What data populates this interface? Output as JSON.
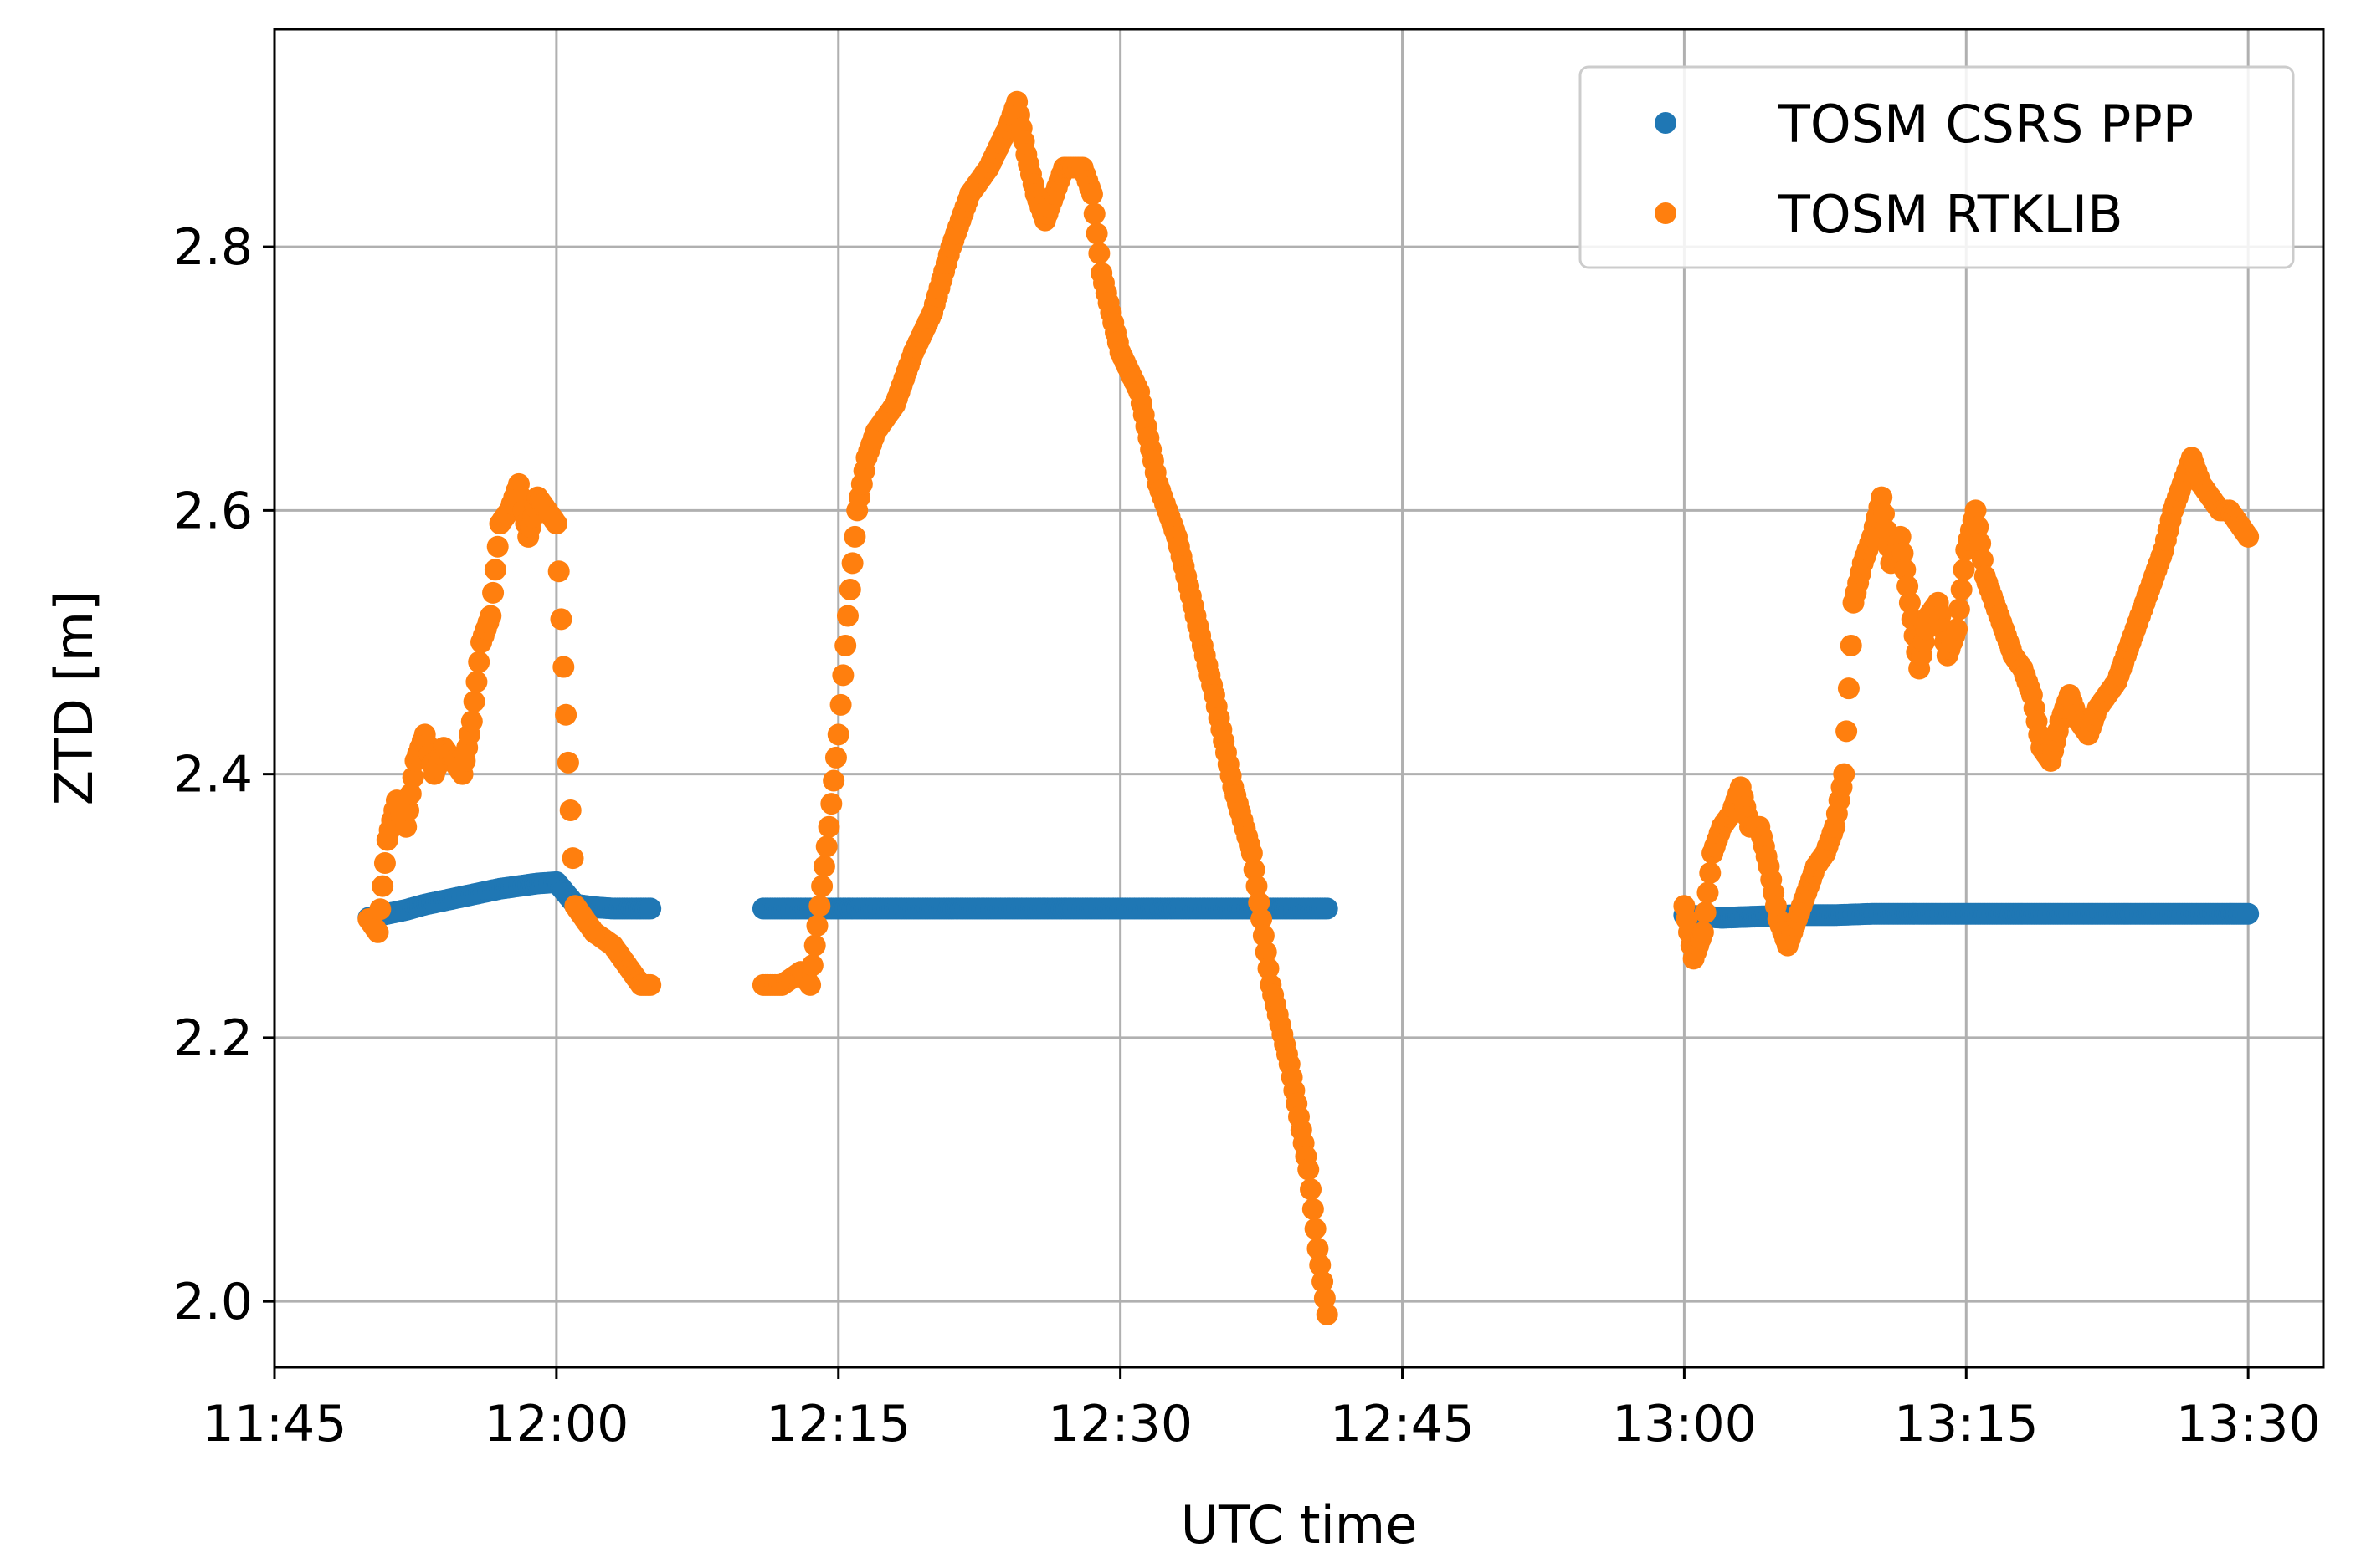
{
  "chart_data": {
    "type": "scatter",
    "title": "",
    "xlabel": "UTC time",
    "ylabel": "ZTD [m]",
    "x_unit": "UTC time of day (HH:MM)",
    "xlim": [
      "11:45",
      "13:34"
    ],
    "ylim": [
      1.95,
      2.965
    ],
    "x_ticks": [
      "11:45",
      "12:00",
      "12:15",
      "12:30",
      "12:45",
      "13:00",
      "13:15",
      "13:30"
    ],
    "y_ticks": [
      "2.0",
      "2.2",
      "2.4",
      "2.6",
      "2.8"
    ],
    "grid": true,
    "legend_position": "top-right",
    "series": [
      {
        "name": "TOSM CSRS PPP",
        "color": "#1f77b4",
        "points": [
          [
            "11:50",
            2.291
          ],
          [
            "11:51",
            2.294
          ],
          [
            "11:52",
            2.297
          ],
          [
            "11:53",
            2.301
          ],
          [
            "11:54",
            2.304
          ],
          [
            "11:55",
            2.307
          ],
          [
            "11:56",
            2.31
          ],
          [
            "11:57",
            2.313
          ],
          [
            "11:58",
            2.315
          ],
          [
            "11:59",
            2.317
          ],
          [
            "12:00",
            2.318
          ],
          [
            "12:01",
            2.301
          ],
          [
            "12:02",
            2.299
          ],
          [
            "12:03",
            2.298
          ],
          [
            "12:04",
            2.298
          ],
          [
            "12:05",
            2.298
          ],
          [
            "12:11",
            2.298
          ],
          [
            "12:13",
            2.298
          ],
          [
            "12:15",
            2.298
          ],
          [
            "12:17",
            2.298
          ],
          [
            "12:19",
            2.298
          ],
          [
            "12:21",
            2.298
          ],
          [
            "12:23",
            2.298
          ],
          [
            "12:25",
            2.298
          ],
          [
            "12:27",
            2.298
          ],
          [
            "12:29",
            2.298
          ],
          [
            "12:31",
            2.298
          ],
          [
            "12:33",
            2.298
          ],
          [
            "12:35",
            2.298
          ],
          [
            "12:37",
            2.298
          ],
          [
            "12:39",
            2.298
          ],
          [
            "12:41",
            2.298
          ],
          [
            "13:00",
            2.293
          ],
          [
            "13:02",
            2.291
          ],
          [
            "13:04",
            2.292
          ],
          [
            "13:06",
            2.293
          ],
          [
            "13:08",
            2.293
          ],
          [
            "13:10",
            2.294
          ],
          [
            "13:12",
            2.294
          ],
          [
            "13:14",
            2.294
          ],
          [
            "13:16",
            2.294
          ],
          [
            "13:18",
            2.294
          ],
          [
            "13:20",
            2.294
          ],
          [
            "13:22",
            2.294
          ],
          [
            "13:24",
            2.294
          ],
          [
            "13:26",
            2.294
          ],
          [
            "13:28",
            2.294
          ],
          [
            "13:30",
            2.294
          ]
        ]
      },
      {
        "name": "TOSM RTKLIB",
        "color": "#ff7f0e",
        "points": [
          [
            "11:50",
            2.29
          ],
          [
            "11:50:30",
            2.28
          ],
          [
            "11:51",
            2.35
          ],
          [
            "11:51:30",
            2.38
          ],
          [
            "11:52",
            2.36
          ],
          [
            "11:52:30",
            2.41
          ],
          [
            "11:53",
            2.43
          ],
          [
            "11:53:30",
            2.4
          ],
          [
            "11:54",
            2.42
          ],
          [
            "11:55",
            2.4
          ],
          [
            "11:55:30",
            2.44
          ],
          [
            "11:56",
            2.5
          ],
          [
            "11:56:30",
            2.52
          ],
          [
            "11:57",
            2.59
          ],
          [
            "11:57:30",
            2.6
          ],
          [
            "11:58",
            2.62
          ],
          [
            "11:58:30",
            2.58
          ],
          [
            "11:59",
            2.61
          ],
          [
            "11:59:30",
            2.6
          ],
          [
            "12:00",
            2.59
          ],
          [
            "12:01",
            2.3
          ],
          [
            "12:01:30",
            2.29
          ],
          [
            "12:02",
            2.28
          ],
          [
            "12:03",
            2.27
          ],
          [
            "12:03:30",
            2.26
          ],
          [
            "12:04",
            2.25
          ],
          [
            "12:04:30",
            2.24
          ],
          [
            "12:05",
            2.24
          ],
          [
            "12:11",
            2.24
          ],
          [
            "12:12",
            2.24
          ],
          [
            "12:13",
            2.25
          ],
          [
            "12:13:30",
            2.24
          ],
          [
            "12:14",
            2.3
          ],
          [
            "12:14:30",
            2.36
          ],
          [
            "12:15",
            2.43
          ],
          [
            "12:15:30",
            2.52
          ],
          [
            "12:16",
            2.6
          ],
          [
            "12:16:30",
            2.64
          ],
          [
            "12:17",
            2.66
          ],
          [
            "12:18",
            2.68
          ],
          [
            "12:19",
            2.72
          ],
          [
            "12:20",
            2.75
          ],
          [
            "12:21",
            2.8
          ],
          [
            "12:22",
            2.84
          ],
          [
            "12:23",
            2.86
          ],
          [
            "12:24",
            2.89
          ],
          [
            "12:24:30",
            2.91
          ],
          [
            "12:25",
            2.87
          ],
          [
            "12:25:30",
            2.84
          ],
          [
            "12:26",
            2.82
          ],
          [
            "12:27",
            2.86
          ],
          [
            "12:28",
            2.86
          ],
          [
            "12:28:30",
            2.84
          ],
          [
            "12:29",
            2.78
          ],
          [
            "12:30",
            2.72
          ],
          [
            "12:31",
            2.69
          ],
          [
            "12:32",
            2.62
          ],
          [
            "12:33",
            2.58
          ],
          [
            "12:34",
            2.52
          ],
          [
            "12:35",
            2.46
          ],
          [
            "12:36",
            2.39
          ],
          [
            "12:37",
            2.34
          ],
          [
            "12:37:30",
            2.29
          ],
          [
            "12:38",
            2.24
          ],
          [
            "12:39",
            2.18
          ],
          [
            "12:39:30",
            2.14
          ],
          [
            "12:40",
            2.1
          ],
          [
            "12:40:30",
            2.04
          ],
          [
            "12:41",
            1.99
          ],
          [
            "13:00",
            2.3
          ],
          [
            "13:00:30",
            2.26
          ],
          [
            "13:01",
            2.28
          ],
          [
            "13:01:30",
            2.34
          ],
          [
            "13:02",
            2.36
          ],
          [
            "13:02:30",
            2.37
          ],
          [
            "13:03",
            2.39
          ],
          [
            "13:03:30",
            2.36
          ],
          [
            "13:04",
            2.36
          ],
          [
            "13:04:30",
            2.33
          ],
          [
            "13:05",
            2.29
          ],
          [
            "13:05:30",
            2.27
          ],
          [
            "13:06",
            2.29
          ],
          [
            "13:06:30",
            2.31
          ],
          [
            "13:07",
            2.33
          ],
          [
            "13:07:30",
            2.34
          ],
          [
            "13:08",
            2.36
          ],
          [
            "13:08:30",
            2.4
          ],
          [
            "13:09",
            2.53
          ],
          [
            "13:09:30",
            2.56
          ],
          [
            "13:10",
            2.58
          ],
          [
            "13:10:30",
            2.61
          ],
          [
            "13:11",
            2.56
          ],
          [
            "13:11:30",
            2.58
          ],
          [
            "13:12",
            2.53
          ],
          [
            "13:12:30",
            2.48
          ],
          [
            "13:13",
            2.52
          ],
          [
            "13:13:30",
            2.53
          ],
          [
            "13:14",
            2.49
          ],
          [
            "13:14:30",
            2.51
          ],
          [
            "13:15",
            2.57
          ],
          [
            "13:15:30",
            2.6
          ],
          [
            "13:16",
            2.55
          ],
          [
            "13:16:30",
            2.53
          ],
          [
            "13:17",
            2.51
          ],
          [
            "13:17:30",
            2.49
          ],
          [
            "13:18",
            2.48
          ],
          [
            "13:18:30",
            2.46
          ],
          [
            "13:19",
            2.42
          ],
          [
            "13:19:30",
            2.41
          ],
          [
            "13:20",
            2.44
          ],
          [
            "13:20:30",
            2.46
          ],
          [
            "13:21",
            2.44
          ],
          [
            "13:21:30",
            2.43
          ],
          [
            "13:22",
            2.45
          ],
          [
            "13:22:30",
            2.46
          ],
          [
            "13:23",
            2.47
          ],
          [
            "13:23:30",
            2.49
          ],
          [
            "13:24",
            2.51
          ],
          [
            "13:24:30",
            2.53
          ],
          [
            "13:25",
            2.55
          ],
          [
            "13:25:30",
            2.57
          ],
          [
            "13:26",
            2.6
          ],
          [
            "13:26:30",
            2.62
          ],
          [
            "13:27",
            2.64
          ],
          [
            "13:27:30",
            2.62
          ],
          [
            "13:28",
            2.61
          ],
          [
            "13:28:30",
            2.6
          ],
          [
            "13:29",
            2.6
          ],
          [
            "13:29:30",
            2.59
          ],
          [
            "13:30",
            2.58
          ]
        ]
      }
    ]
  }
}
